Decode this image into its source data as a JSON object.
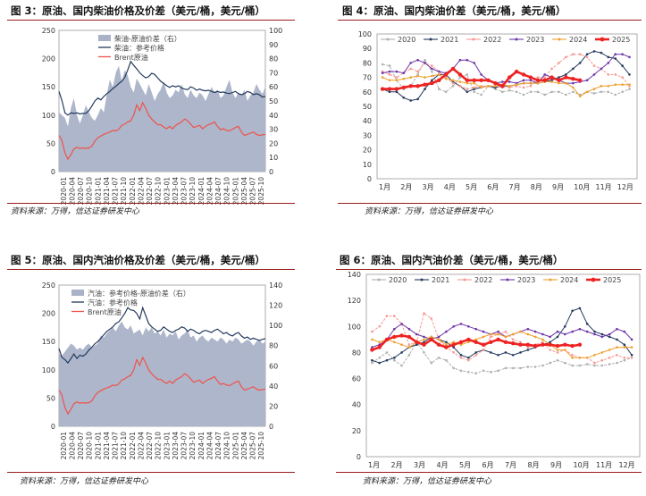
{
  "panels": {
    "p3": {
      "title": "图 3：原油、国内柴油价格及价差（美元/桶，美元/桶）",
      "source": "资料来源：万得，信达证券研发中心"
    },
    "p4": {
      "title": "图 4：原油、国内柴油价差（美元/桶，美元/桶）",
      "source": "资料来源：万得，信达证券研发中心"
    },
    "p5": {
      "title": "图 5：原油、国内汽油价格及价差（美元/桶，美元/桶）",
      "source": "资料来源：万得，信达证券研发中心"
    },
    "p6": {
      "title": "图 6：原油、国内汽油价差（美元/桶，美元/桶）",
      "source": "资料来源：万得，信达证券研发中心"
    }
  },
  "colors": {
    "spread_fill": "#a9b2c7",
    "product_line": "#243a5e",
    "brent_line": "#f0524b",
    "rule": "#9a1c1c"
  },
  "chart_data": [
    {
      "id": "p3",
      "type": "line",
      "x_ticks": [
        "2020-01",
        "2020-04",
        "2020-07",
        "2020-10",
        "2021-01",
        "2021-04",
        "2021-07",
        "2021-10",
        "2022-01",
        "2022-04",
        "2022-07",
        "2022-10",
        "2023-01",
        "2023-04",
        "2023-07",
        "2023-10",
        "2024-01",
        "2024-04",
        "2024-07",
        "2024-10",
        "2025-01",
        "2025-04",
        "2025-07",
        "2025-10"
      ],
      "y_left": {
        "ticks": [
          0,
          50,
          100,
          150,
          200,
          250
        ],
        "lim": [
          0,
          250
        ]
      },
      "y_right": {
        "ticks": [
          0,
          10,
          20,
          30,
          40,
          50,
          60,
          70,
          80,
          90,
          100
        ],
        "lim": [
          0,
          100
        ]
      },
      "series": [
        {
          "name": "柴油-原油价差（右）",
          "kind": "area",
          "axis": "right",
          "color": "#a9b2c7",
          "values": [
            42,
            40,
            38,
            32,
            45,
            52,
            40,
            34,
            40,
            47,
            42,
            38,
            36,
            40,
            45,
            42,
            55,
            65,
            60,
            70,
            75,
            64,
            72,
            68,
            60,
            56,
            66,
            62,
            58,
            54,
            62,
            56,
            50,
            55,
            58,
            64,
            56,
            52,
            54,
            58,
            56,
            62,
            55,
            52,
            58,
            54,
            52,
            56,
            54,
            50,
            55,
            60,
            56,
            58,
            52,
            54,
            60,
            65,
            56,
            52,
            56,
            54,
            58,
            50,
            54,
            56,
            62,
            58,
            55,
            60
          ]
        },
        {
          "name": "柴油：参考价格",
          "kind": "line",
          "axis": "left",
          "color": "#243a5e",
          "values": [
            142,
            126,
            104,
            100,
            104,
            103,
            104,
            102,
            103,
            103,
            108,
            116,
            125,
            130,
            127,
            133,
            138,
            142,
            147,
            151,
            156,
            160,
            167,
            180,
            195,
            188,
            182,
            175,
            170,
            166,
            168,
            174,
            172,
            166,
            160,
            156,
            152,
            149,
            152,
            150,
            152,
            148,
            146,
            145,
            150,
            148,
            144,
            146,
            144,
            143,
            144,
            142,
            140,
            142,
            140,
            141,
            139,
            138,
            140,
            142,
            138,
            136,
            138,
            142,
            140,
            136,
            138,
            136,
            132,
            133
          ]
        },
        {
          "name": "Brent原油",
          "kind": "line",
          "axis": "left",
          "color": "#f0524b",
          "values": [
            64,
            55,
            33,
            22,
            30,
            40,
            43,
            41,
            42,
            41,
            42,
            45,
            54,
            60,
            63,
            66,
            68,
            70,
            73,
            72,
            75,
            82,
            84,
            88,
            90,
            100,
            118,
            108,
            122,
            112,
            100,
            93,
            88,
            83,
            83,
            79,
            76,
            80,
            76,
            82,
            85,
            88,
            93,
            90,
            84,
            78,
            80,
            82,
            76,
            80,
            83,
            85,
            88,
            80,
            74,
            76,
            73,
            72,
            75,
            78,
            80,
            70,
            64,
            66,
            68,
            70,
            66,
            64,
            65,
            66
          ]
        }
      ]
    },
    {
      "id": "p4",
      "type": "line",
      "x_ticks": [
        "1月",
        "2月",
        "3月",
        "4月",
        "5月",
        "6月",
        "7月",
        "8月",
        "9月",
        "10月",
        "11月",
        "12月"
      ],
      "y": {
        "ticks": [
          0,
          10,
          20,
          30,
          40,
          50,
          60,
          70,
          80,
          90,
          100
        ],
        "lim": [
          0,
          100
        ]
      },
      "series": [
        {
          "name": "2020",
          "color": "#b0b0b0",
          "values": [
            79,
            78,
            68,
            62,
            64,
            72,
            82,
            74,
            62,
            60,
            64,
            70,
            72,
            60,
            58,
            64,
            62,
            60,
            61,
            60,
            58,
            60,
            60,
            58,
            60,
            60,
            58,
            60,
            58,
            60,
            59,
            60,
            60,
            58,
            60,
            62
          ]
        },
        {
          "name": "2021",
          "color": "#243a5e",
          "values": [
            62,
            60,
            60,
            56,
            54,
            55,
            62,
            68,
            72,
            72,
            67,
            64,
            60,
            62,
            63,
            64,
            63,
            64,
            64,
            65,
            66,
            66,
            66,
            67,
            68,
            70,
            72,
            76,
            80,
            86,
            88,
            87,
            84,
            83,
            78,
            72
          ]
        },
        {
          "name": "2022",
          "color": "#f59a94",
          "values": [
            74,
            72,
            70,
            73,
            76,
            74,
            80,
            78,
            74,
            70,
            66,
            64,
            62,
            63,
            64,
            64,
            64,
            63,
            63,
            64,
            63,
            64,
            70,
            70,
            76,
            80,
            84,
            86,
            86,
            84,
            78,
            76,
            72,
            72,
            70,
            64
          ]
        },
        {
          "name": "2023",
          "color": "#6f35a8",
          "values": [
            73,
            74,
            74,
            73,
            80,
            82,
            80,
            76,
            74,
            73,
            76,
            82,
            82,
            80,
            72,
            68,
            66,
            67,
            67,
            66,
            68,
            68,
            66,
            72,
            70,
            68,
            66,
            66,
            67,
            68,
            72,
            76,
            80,
            86,
            86,
            84
          ]
        },
        {
          "name": "2024",
          "color": "#f0a030",
          "values": [
            70,
            68,
            68,
            69,
            70,
            71,
            70,
            71,
            72,
            69,
            68,
            67,
            66,
            66,
            63,
            64,
            64,
            65,
            64,
            65,
            66,
            66,
            66,
            67,
            67,
            66,
            66,
            63,
            57,
            60,
            62,
            64,
            64,
            65,
            65,
            65
          ]
        },
        {
          "name": "2025",
          "color": "#ee2222",
          "values": [
            62,
            62,
            62,
            63,
            64,
            64,
            65,
            66,
            68,
            72,
            76,
            72,
            68,
            68,
            68,
            68,
            66,
            64,
            70,
            74,
            72,
            70,
            68,
            68,
            70,
            68,
            70,
            69,
            68
          ]
        }
      ]
    },
    {
      "id": "p5",
      "type": "line",
      "x_ticks": [
        "2020-01",
        "2020-04",
        "2020-07",
        "2020-10",
        "2021-01",
        "2021-04",
        "2021-07",
        "2021-10",
        "2022-01",
        "2022-04",
        "2022-07",
        "2022-10",
        "2023-01",
        "2023-04",
        "2023-07",
        "2023-10",
        "2024-01",
        "2024-04",
        "2024-07",
        "2024-10",
        "2025-01",
        "2025-04",
        "2025-07",
        "2025-10"
      ],
      "y_left": {
        "ticks": [
          0,
          50,
          100,
          150,
          200,
          250
        ],
        "lim": [
          0,
          250
        ]
      },
      "y_right": {
        "ticks": [
          0,
          20,
          40,
          60,
          80,
          100,
          120,
          140
        ],
        "lim": [
          0,
          140
        ]
      },
      "series": [
        {
          "name": "汽油：参考价格-原油价差（右）",
          "kind": "area",
          "axis": "right",
          "color": "#a9b2c7",
          "values": [
            72,
            70,
            74,
            78,
            82,
            80,
            76,
            78,
            76,
            80,
            82,
            78,
            80,
            82,
            90,
            88,
            92,
            95,
            98,
            94,
            100,
            104,
            98,
            96,
            100,
            92,
            94,
            96,
            90,
            98,
            94,
            98,
            92,
            94,
            90,
            96,
            88,
            92,
            90,
            94,
            86,
            90,
            92,
            96,
            88,
            90,
            84,
            88,
            90,
            86,
            84,
            88,
            86,
            84,
            88,
            86,
            82,
            86,
            84,
            88,
            86,
            82,
            84,
            86,
            84,
            80,
            84,
            86,
            82,
            84
          ]
        },
        {
          "name": "汽油：参考价格",
          "kind": "line",
          "axis": "left",
          "color": "#243a5e",
          "values": [
            138,
            122,
            118,
            112,
            120,
            128,
            120,
            126,
            124,
            128,
            135,
            140,
            146,
            150,
            156,
            162,
            168,
            172,
            176,
            182,
            185,
            192,
            200,
            210,
            206,
            205,
            200,
            190,
            210,
            196,
            182,
            176,
            172,
            168,
            170,
            176,
            172,
            168,
            166,
            170,
            172,
            176,
            174,
            168,
            172,
            170,
            166,
            164,
            168,
            170,
            168,
            166,
            170,
            172,
            168,
            164,
            166,
            162,
            160,
            164,
            166,
            160,
            156,
            158,
            154,
            156,
            154,
            152,
            154,
            155
          ]
        },
        {
          "name": "Brent原油",
          "kind": "line",
          "axis": "left",
          "color": "#f0524b",
          "values": [
            64,
            55,
            33,
            22,
            30,
            40,
            43,
            41,
            42,
            41,
            42,
            45,
            54,
            60,
            63,
            66,
            68,
            70,
            73,
            72,
            75,
            82,
            84,
            88,
            90,
            100,
            118,
            108,
            122,
            112,
            100,
            93,
            88,
            83,
            83,
            79,
            76,
            80,
            76,
            82,
            85,
            88,
            93,
            90,
            84,
            78,
            80,
            82,
            76,
            80,
            83,
            85,
            88,
            80,
            74,
            76,
            73,
            72,
            75,
            78,
            80,
            70,
            64,
            66,
            68,
            70,
            66,
            64,
            65,
            66
          ]
        }
      ]
    },
    {
      "id": "p6",
      "type": "line",
      "x_ticks": [
        "1月",
        "2月",
        "3月",
        "4月",
        "5月",
        "6月",
        "7月",
        "8月",
        "9月",
        "10月",
        "11月",
        "12月"
      ],
      "y": {
        "ticks": [
          0,
          20,
          40,
          60,
          80,
          100,
          120,
          140
        ],
        "lim": [
          0,
          140
        ]
      },
      "series": [
        {
          "name": "2020",
          "color": "#b0b0b0",
          "values": [
            72,
            76,
            80,
            74,
            70,
            78,
            88,
            80,
            72,
            76,
            74,
            68,
            66,
            65,
            64,
            66,
            65,
            66,
            68,
            68,
            68,
            69,
            69,
            70,
            72,
            74,
            72,
            70,
            70,
            71,
            70,
            70,
            71,
            72,
            74,
            76
          ]
        },
        {
          "name": "2021",
          "color": "#243a5e",
          "values": [
            74,
            72,
            74,
            76,
            80,
            84,
            86,
            88,
            92,
            90,
            88,
            84,
            78,
            76,
            80,
            82,
            80,
            78,
            80,
            78,
            80,
            82,
            84,
            86,
            88,
            92,
            100,
            112,
            114,
            102,
            96,
            94,
            92,
            90,
            86,
            78
          ]
        },
        {
          "name": "2022",
          "color": "#f59a94",
          "values": [
            96,
            100,
            108,
            108,
            102,
            86,
            88,
            110,
            106,
            90,
            84,
            80,
            76,
            74,
            78,
            82,
            92,
            94,
            96,
            90,
            88,
            84,
            86,
            88,
            82,
            80,
            82,
            78,
            76,
            76,
            72,
            74,
            76,
            78,
            76,
            76
          ]
        },
        {
          "name": "2023",
          "color": "#6f35a8",
          "values": [
            84,
            86,
            90,
            98,
            102,
            98,
            94,
            92,
            90,
            92,
            96,
            100,
            102,
            100,
            98,
            96,
            94,
            96,
            92,
            94,
            96,
            98,
            96,
            94,
            92,
            96,
            94,
            96,
            98,
            96,
            94,
            92,
            94,
            98,
            96,
            90
          ]
        },
        {
          "name": "2024",
          "color": "#f0a030",
          "values": [
            90,
            88,
            90,
            88,
            86,
            84,
            88,
            90,
            92,
            90,
            86,
            88,
            86,
            88,
            90,
            92,
            94,
            94,
            92,
            94,
            96,
            94,
            92,
            90,
            86,
            82,
            82,
            76,
            76,
            76,
            78,
            80,
            82,
            84,
            84,
            84
          ]
        },
        {
          "name": "2025",
          "color": "#ee2222",
          "values": [
            82,
            84,
            90,
            92,
            93,
            92,
            88,
            86,
            90,
            86,
            84,
            86,
            88,
            90,
            88,
            86,
            88,
            90,
            88,
            87,
            86,
            86,
            85,
            86,
            86,
            85,
            86,
            85,
            86
          ]
        }
      ]
    }
  ]
}
